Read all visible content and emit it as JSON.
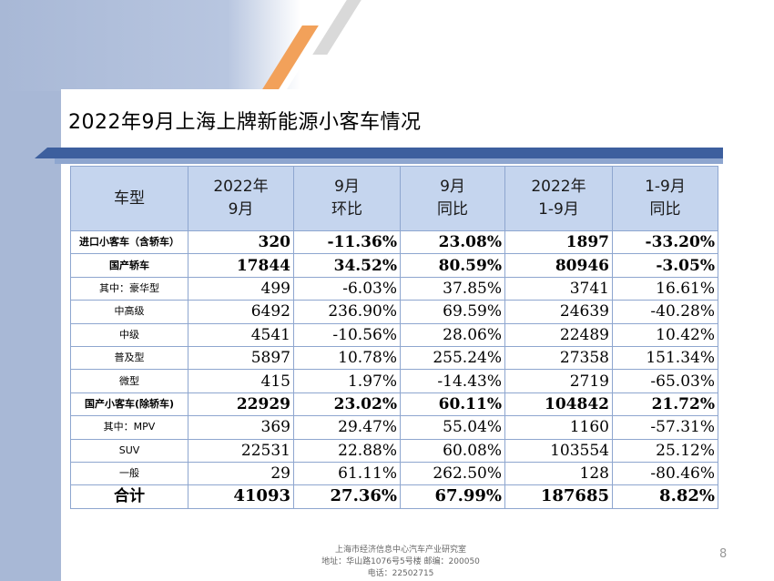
{
  "title": "2022年9月上海上牌新能源小客车情况",
  "headers": [
    {
      "line1": "车型",
      "line2": ""
    },
    {
      "line1": "2022年",
      "line2": "9月"
    },
    {
      "line1": "9月",
      "line2": "环比"
    },
    {
      "line1": "9月",
      "line2": "同比"
    },
    {
      "line1": "2022年",
      "line2": "1-9月"
    },
    {
      "line1": "1-9月",
      "line2": "同比"
    }
  ],
  "rows": [
    {
      "name": "进口小客车（含轿车）",
      "values": [
        "320",
        "-11.36%",
        "23.08%",
        "1897",
        "-33.20%"
      ],
      "bold": true
    },
    {
      "name": "国产轿车",
      "values": [
        "17844",
        "34.52%",
        "80.59%",
        "80946",
        "-3.05%"
      ],
      "bold": true
    },
    {
      "name": "其中：豪华型",
      "values": [
        "499",
        "-6.03%",
        "37.85%",
        "3741",
        "16.61%"
      ],
      "bold": false
    },
    {
      "name": "中高级",
      "values": [
        "6492",
        "236.90%",
        "69.59%",
        "24639",
        "-40.28%"
      ],
      "bold": false
    },
    {
      "name": "中级",
      "values": [
        "4541",
        "-10.56%",
        "28.06%",
        "22489",
        "10.42%"
      ],
      "bold": false
    },
    {
      "name": "普及型",
      "values": [
        "5897",
        "10.78%",
        "255.24%",
        "27358",
        "151.34%"
      ],
      "bold": false
    },
    {
      "name": "微型",
      "values": [
        "415",
        "1.97%",
        "-14.43%",
        "2719",
        "-65.03%"
      ],
      "bold": false
    },
    {
      "name": "国产小客车(除轿车)",
      "values": [
        "22929",
        "23.02%",
        "60.11%",
        "104842",
        "21.72%"
      ],
      "bold": true
    },
    {
      "name": "其中：MPV",
      "values": [
        "369",
        "29.47%",
        "55.04%",
        "1160",
        "-57.31%"
      ],
      "bold": false
    },
    {
      "name": "SUV",
      "values": [
        "22531",
        "22.88%",
        "60.08%",
        "103554",
        "25.12%"
      ],
      "bold": false
    },
    {
      "name": "一般",
      "values": [
        "29",
        "61.11%",
        "262.50%",
        "128",
        "-80.46%"
      ],
      "bold": false
    },
    {
      "name": "合计",
      "values": [
        "41093",
        "27.36%",
        "67.99%",
        "187685",
        "8.82%"
      ],
      "bold": true
    }
  ],
  "footer": {
    "line1": "上海市经济信息中心汽车产业研究室",
    "line2": "地址：华山路1076号5号楼 邮编：200050",
    "line3": "电话：22502715"
  },
  "page_number": "8",
  "colors": {
    "header_fill": "#c5d5ee",
    "border": "#8ea6cf",
    "band": "#3d5f9e",
    "accent_stripe": "#f2a15a"
  }
}
